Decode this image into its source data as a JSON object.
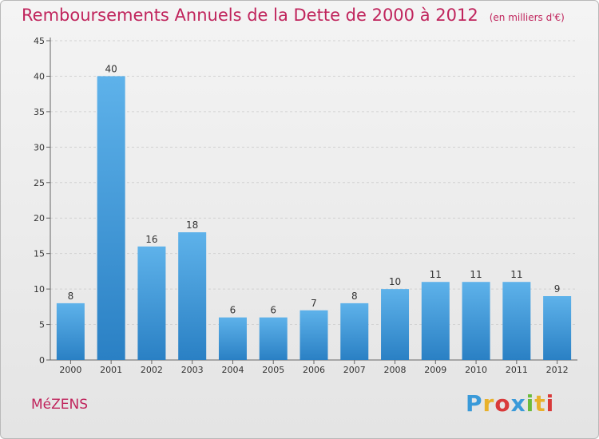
{
  "title": "Remboursements Annuels de la Dette de 2000 à 2012",
  "subtitle": "(en milliers d'€)",
  "commune": "MéZENS",
  "logo": {
    "letters": [
      "P",
      "r",
      "o",
      "x",
      "i",
      "t",
      "i"
    ],
    "colors": [
      "#3a9ad9",
      "#e8b12b",
      "#d93a3a",
      "#3a9ad9",
      "#6cbb3c",
      "#e8b12b",
      "#d93a3a"
    ]
  },
  "colors": {
    "title": "#c0245c",
    "bar_top": "#5eb2ea",
    "bar_bottom": "#2a80c4"
  },
  "chart_data": {
    "type": "bar",
    "categories": [
      "2000",
      "2001",
      "2002",
      "2003",
      "2004",
      "2005",
      "2006",
      "2007",
      "2008",
      "2009",
      "2010",
      "2011",
      "2012"
    ],
    "values": [
      8,
      40,
      16,
      18,
      6,
      6,
      7,
      8,
      10,
      11,
      11,
      11,
      9
    ],
    "ylim": [
      0,
      45
    ],
    "yticks": [
      0,
      5,
      10,
      15,
      20,
      25,
      30,
      35,
      40,
      45
    ],
    "grid": true,
    "data_labels": true
  }
}
